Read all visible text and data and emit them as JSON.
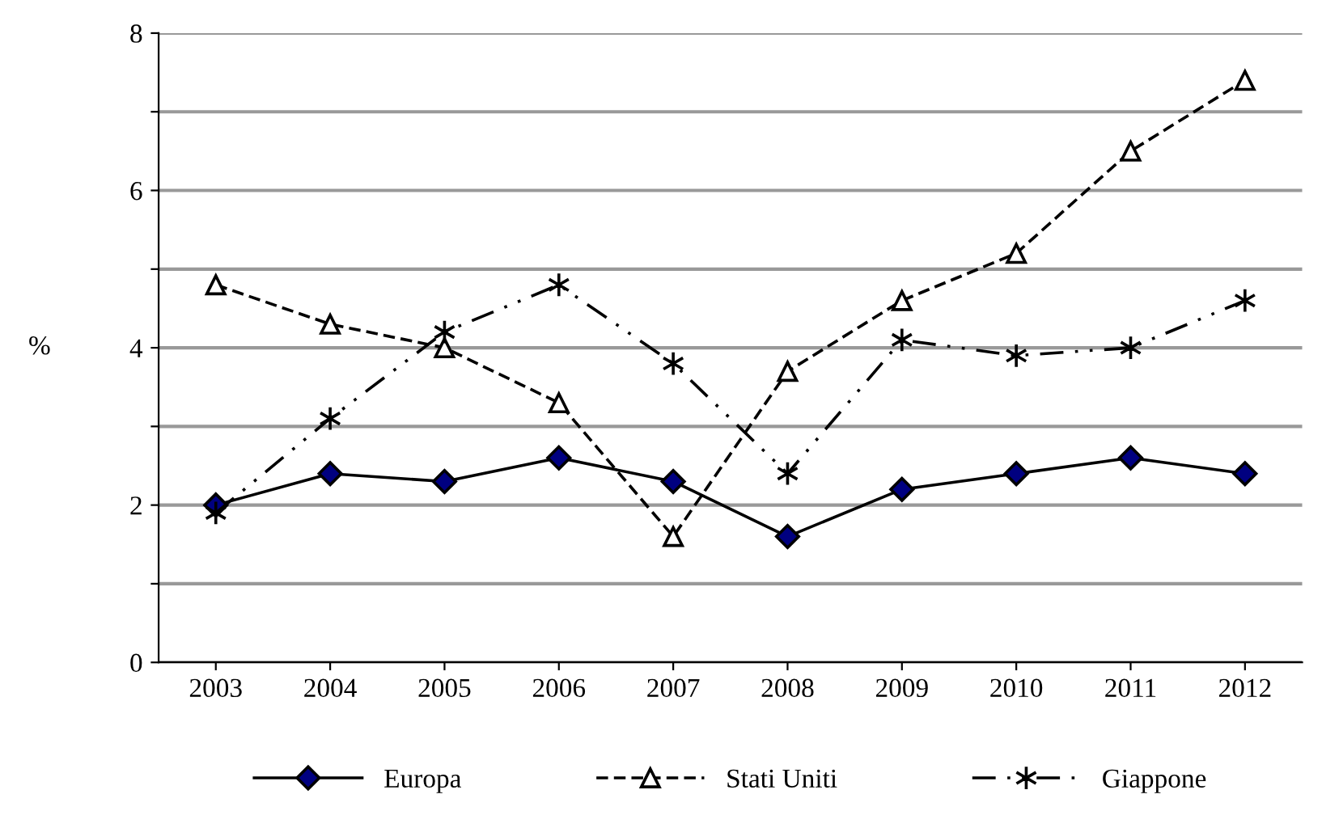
{
  "chart_data": {
    "type": "line",
    "ylabel": "%",
    "categories": [
      "2003",
      "2004",
      "2005",
      "2006",
      "2007",
      "2008",
      "2009",
      "2010",
      "2011",
      "2012"
    ],
    "series": [
      {
        "name": "Europa",
        "color": "#000000",
        "marker": "diamond",
        "line_style": "solid",
        "values": [
          2.0,
          2.4,
          2.3,
          2.6,
          2.3,
          1.6,
          2.2,
          2.4,
          2.6,
          2.4
        ]
      },
      {
        "name": "Stati Uniti",
        "color": "#000000",
        "marker": "triangle",
        "line_style": "dashed",
        "values": [
          4.8,
          4.3,
          4.0,
          3.3,
          1.6,
          3.7,
          4.6,
          5.2,
          6.5,
          7.4
        ]
      },
      {
        "name": "Giappone",
        "color": "#000000",
        "marker": "cross",
        "line_style": "dashdot",
        "values": [
          1.9,
          3.1,
          4.2,
          4.8,
          3.8,
          2.4,
          4.1,
          3.9,
          4.0,
          4.6
        ]
      }
    ],
    "ylim": [
      0,
      8
    ],
    "yticks": [
      0,
      {
        "value": 1,
        "label": null
      },
      2,
      {
        "value": 3,
        "label": null
      },
      4,
      {
        "value": 5,
        "label": null
      },
      6,
      {
        "value": 7,
        "label": null
      },
      8
    ],
    "grid": "y",
    "legend": "bottom"
  }
}
